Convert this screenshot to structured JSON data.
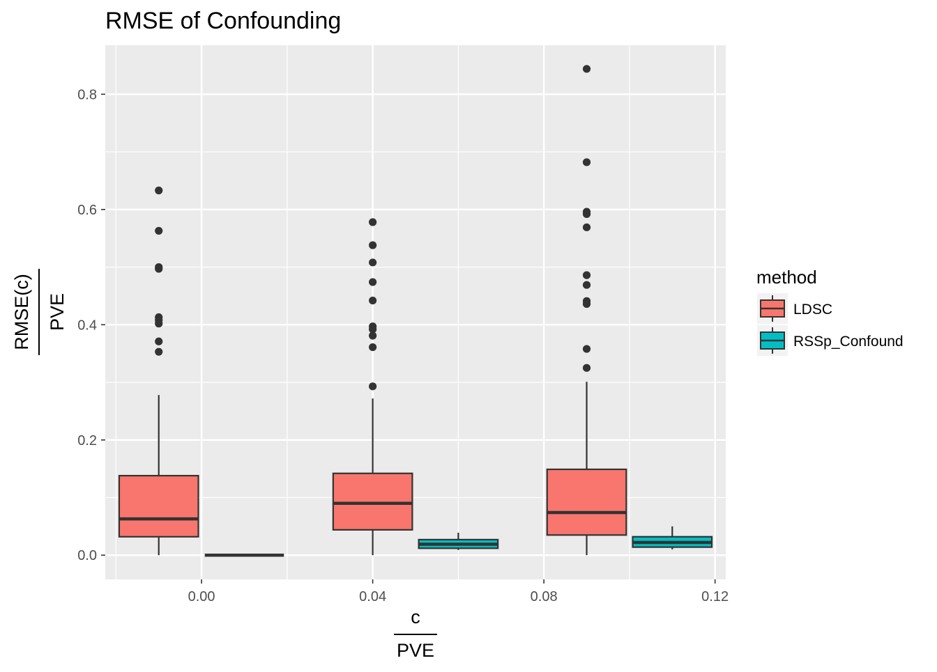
{
  "chart_data": {
    "type": "box",
    "title": "RMSE of Confounding",
    "xlabel": {
      "numerator": "c",
      "denominator": "PVE"
    },
    "ylabel": {
      "numerator": "RMSE(c)",
      "denominator": "PVE"
    },
    "xlim": [
      -0.0225,
      0.1225
    ],
    "ylim": [
      -0.042,
      0.885
    ],
    "x_ticks": [
      {
        "value": 0.0,
        "label": "0.00"
      },
      {
        "value": 0.04,
        "label": "0.04"
      },
      {
        "value": 0.08,
        "label": "0.08"
      },
      {
        "value": 0.12,
        "label": "0.12"
      }
    ],
    "y_ticks": [
      {
        "value": 0.0,
        "label": "0.0"
      },
      {
        "value": 0.2,
        "label": "0.2"
      },
      {
        "value": 0.4,
        "label": "0.4"
      },
      {
        "value": 0.6,
        "label": "0.6"
      },
      {
        "value": 0.8,
        "label": "0.8"
      }
    ],
    "box_width": 0.0185,
    "legend": {
      "title": "method",
      "position": "right",
      "entries": [
        {
          "label": "LDSC",
          "color": "#f8766d"
        },
        {
          "label": "RSSp_Confound",
          "color": "#00bfc4"
        }
      ]
    },
    "series": [
      {
        "name": "LDSC",
        "color": "#f8766d",
        "boxes": [
          {
            "x": -0.01,
            "whisker_low": 0.0,
            "q1": 0.032,
            "median": 0.063,
            "q3": 0.138,
            "whisker_high": 0.278,
            "outliers": [
              0.633,
              0.563,
              0.5,
              0.497,
              0.413,
              0.408,
              0.402,
              0.371,
              0.353
            ]
          },
          {
            "x": 0.04,
            "whisker_low": 0.0,
            "q1": 0.044,
            "median": 0.09,
            "q3": 0.142,
            "whisker_high": 0.272,
            "outliers": [
              0.578,
              0.538,
              0.508,
              0.474,
              0.442,
              0.397,
              0.392,
              0.381,
              0.361,
              0.293
            ]
          },
          {
            "x": 0.09,
            "whisker_low": 0.0,
            "q1": 0.035,
            "median": 0.074,
            "q3": 0.149,
            "whisker_high": 0.301,
            "outliers": [
              0.844,
              0.682,
              0.596,
              0.592,
              0.569,
              0.486,
              0.469,
              0.441,
              0.436,
              0.358,
              0.325
            ]
          }
        ]
      },
      {
        "name": "RSSp_Confound",
        "color": "#00bfc4",
        "boxes": [
          {
            "x": 0.01,
            "whisker_low": 0.0,
            "q1": 0.0,
            "median": 0.0,
            "q3": 0.0,
            "whisker_high": 0.0,
            "outliers": []
          },
          {
            "x": 0.06,
            "whisker_low": 0.009,
            "q1": 0.012,
            "median": 0.019,
            "q3": 0.027,
            "whisker_high": 0.039,
            "outliers": []
          },
          {
            "x": 0.11,
            "whisker_low": 0.01,
            "q1": 0.014,
            "median": 0.022,
            "q3": 0.032,
            "whisker_high": 0.05,
            "outliers": []
          }
        ]
      }
    ]
  }
}
